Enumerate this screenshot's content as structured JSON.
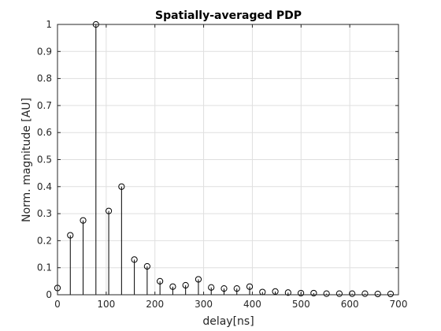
{
  "chart_data": {
    "type": "stem",
    "title": "Spatially-averaged PDP",
    "xlabel": "delay[ns]",
    "ylabel": "Norm. magnitude [AU]",
    "xlim": [
      0,
      700
    ],
    "ylim": [
      0,
      1
    ],
    "xticks": [
      0,
      100,
      200,
      300,
      400,
      500,
      600,
      700
    ],
    "yticks": [
      0,
      0.1,
      0.2,
      0.3,
      0.4,
      0.5,
      0.6,
      0.7,
      0.8,
      0.9,
      1
    ],
    "xtick_labels": [
      "0",
      "100",
      "200",
      "300",
      "400",
      "500",
      "600",
      "700"
    ],
    "ytick_labels": [
      "0",
      "0.1",
      "0.2",
      "0.3",
      "0.4",
      "0.5",
      "0.6",
      "0.7",
      "0.8",
      "0.9",
      "1"
    ],
    "grid": true,
    "series": [
      {
        "x": [
          0,
          26.3,
          52.6,
          78.9,
          105.2,
          131.5,
          157.8,
          184.1,
          210.4,
          236.7,
          263,
          289.3,
          315.6,
          341.9,
          368.2,
          394.5,
          420.8,
          447.1,
          473.4,
          499.7,
          526,
          552.3,
          578.6,
          604.9,
          631.2,
          657.5,
          683.8
        ],
        "values": [
          0.025,
          0.22,
          0.275,
          1.0,
          0.31,
          0.4,
          0.13,
          0.105,
          0.05,
          0.03,
          0.035,
          0.057,
          0.027,
          0.023,
          0.023,
          0.03,
          0.01,
          0.012,
          0.008,
          0.006,
          0.006,
          0.004,
          0.004,
          0.004,
          0.004,
          0.003,
          0.003
        ]
      }
    ]
  },
  "colors": {
    "stem": "#000000",
    "grid": "#dfdfdf",
    "axis": "#262626"
  }
}
